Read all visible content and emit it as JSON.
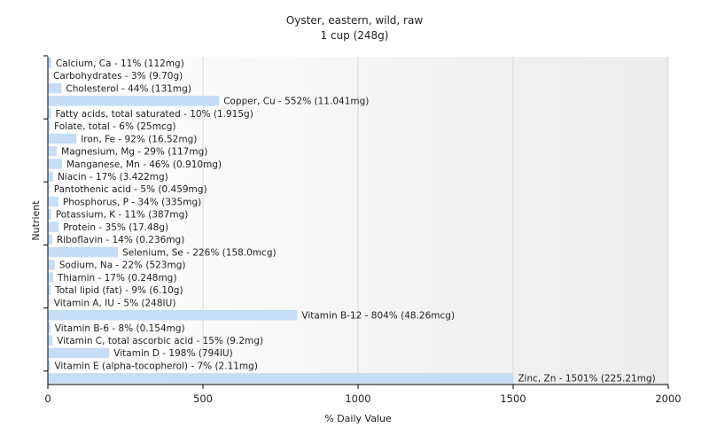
{
  "chart_data": {
    "type": "bar",
    "orientation": "horizontal",
    "title": "Oyster, eastern, wild, raw",
    "subtitle": "1 cup (248g)",
    "xlabel": "% Daily Value",
    "ylabel": "Nutrient",
    "xlim": [
      0,
      2000
    ],
    "xticks": [
      0,
      500,
      1000,
      1500,
      2000
    ],
    "grid": true,
    "bar_color": "#c6dcf7",
    "categories": [
      "Calcium, Ca",
      "Carbohydrates",
      "Cholesterol",
      "Copper, Cu",
      "Fatty acids, total saturated",
      "Folate, total",
      "Iron, Fe",
      "Magnesium, Mg",
      "Manganese, Mn",
      "Niacin",
      "Pantothenic acid",
      "Phosphorus, P",
      "Potassium, K",
      "Protein",
      "Riboflavin",
      "Selenium, Se",
      "Sodium, Na",
      "Thiamin",
      "Total lipid (fat)",
      "Vitamin A, IU",
      "Vitamin B-12",
      "Vitamin B-6",
      "Vitamin C, total ascorbic acid",
      "Vitamin D",
      "Vitamin E (alpha-tocopherol)",
      "Zinc, Zn"
    ],
    "values": [
      11,
      3,
      44,
      552,
      10,
      6,
      92,
      29,
      46,
      17,
      5,
      34,
      11,
      35,
      14,
      226,
      22,
      17,
      9,
      5,
      804,
      8,
      15,
      198,
      7,
      1501
    ],
    "labels": [
      "Calcium, Ca - 11% (112mg)",
      "Carbohydrates - 3% (9.70g)",
      "Cholesterol - 44% (131mg)",
      "Copper, Cu - 552% (11.041mg)",
      "Fatty acids, total saturated - 10% (1.915g)",
      "Folate, total - 6% (25mcg)",
      "Iron, Fe - 92% (16.52mg)",
      "Magnesium, Mg - 29% (117mg)",
      "Manganese, Mn - 46% (0.910mg)",
      "Niacin - 17% (3.422mg)",
      "Pantothenic acid - 5% (0.459mg)",
      "Phosphorus, P - 34% (335mg)",
      "Potassium, K - 11% (387mg)",
      "Protein - 35% (17.48g)",
      "Riboflavin - 14% (0.236mg)",
      "Selenium, Se - 226% (158.0mcg)",
      "Sodium, Na - 22% (523mg)",
      "Thiamin - 17% (0.248mg)",
      "Total lipid (fat) - 9% (6.10g)",
      "Vitamin A, IU - 5% (248IU)",
      "Vitamin B-12 - 804% (48.26mcg)",
      "Vitamin B-6 - 8% (0.154mg)",
      "Vitamin C, total ascorbic acid - 15% (9.2mg)",
      "Vitamin D - 198% (794IU)",
      "Vitamin E (alpha-tocopherol) - 7% (2.11mg)",
      "Zinc, Zn - 1501% (225.21mg)"
    ]
  }
}
